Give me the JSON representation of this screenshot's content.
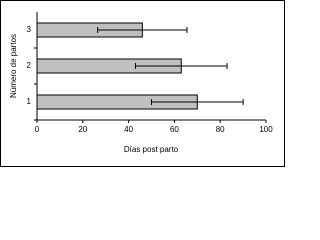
{
  "chart_data": {
    "type": "bar",
    "orientation": "horizontal",
    "x_label": "Días post parto",
    "y_label": "Número de partos",
    "categories": [
      "1",
      "2",
      "3"
    ],
    "values": [
      70,
      63,
      46
    ],
    "errors": [
      20,
      20,
      19.5
    ],
    "color": "#c0c0c0",
    "xlim": [
      0,
      100
    ],
    "xticks": [
      0,
      20,
      40,
      60,
      80,
      100
    ],
    "grid": false
  }
}
